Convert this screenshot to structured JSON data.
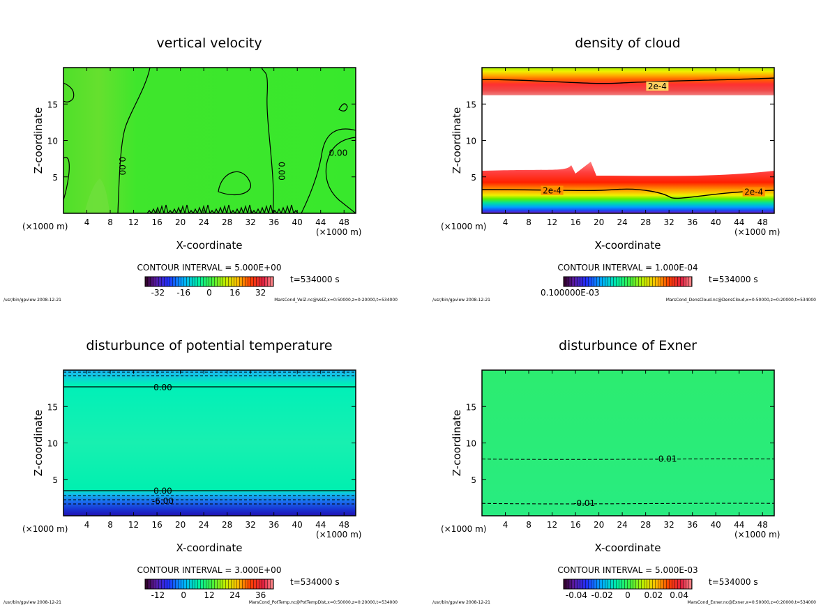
{
  "footer_left": "/usr/bin/gpview  2008-12-21",
  "chart_data": [
    {
      "type": "heatmap",
      "title": "vertical velocity",
      "xlabel": "X-coordinate",
      "ylabel": "Z-coordinate",
      "x_unit": "(×1000 m)",
      "x_ticks": [
        4,
        8,
        12,
        16,
        20,
        24,
        28,
        32,
        36,
        40,
        44,
        48
      ],
      "y_ticks": [
        5,
        10,
        15
      ],
      "xlim": [
        0,
        50
      ],
      "ylim": [
        0,
        20
      ],
      "contour_interval": "CONTOUR INTERVAL = 5.000E+00",
      "time_label": "t=534000 s",
      "colorbar_labels": [
        "-32",
        "-16",
        "0",
        "16",
        "32"
      ],
      "colorbar_values": [
        -32,
        -16,
        0,
        16,
        32
      ],
      "colorbar_range": [
        -40,
        40
      ],
      "contour_labels": [
        {
          "text": "0.00",
          "x": 10.0,
          "z": 6.5
        },
        {
          "text": "0.00",
          "x": 37.3,
          "z": 5.8
        },
        {
          "text": "0.00",
          "x": 47.0,
          "z": 8.3
        }
      ],
      "footer_right": "MarsCond_VelZ.nc@VelZ,x=0:50000,z=0:20000,t=534000",
      "palette": "green"
    },
    {
      "type": "heatmap",
      "title": "density of cloud",
      "xlabel": "X-coordinate",
      "ylabel": "Z-coordinate",
      "x_unit": "(×1000 m)",
      "x_ticks": [
        4,
        8,
        12,
        16,
        20,
        24,
        28,
        32,
        36,
        40,
        44,
        48
      ],
      "y_ticks": [
        5,
        10,
        15
      ],
      "xlim": [
        0,
        50
      ],
      "ylim": [
        0,
        20
      ],
      "contour_interval": "CONTOUR INTERVAL = 1.000E-04",
      "time_label": "t=534000 s",
      "colorbar_labels": [
        "0.100000E-03"
      ],
      "colorbar_values": [
        0
      ],
      "colorbar_range": [
        0,
        1
      ],
      "contour_labels": [
        {
          "text": "2e-4",
          "x": 30.0,
          "z": 17.4
        },
        {
          "text": "2e-4",
          "x": 12.0,
          "z": 3.1
        },
        {
          "text": "2e-4",
          "x": 46.5,
          "z": 2.9
        }
      ],
      "footer_right": "MarsCond_DensCloud.nc@DensCloud,x=0:50000,z=0:20000,t=534000",
      "palette": "cloud"
    },
    {
      "type": "heatmap",
      "title": "disturbunce of potential temperature",
      "xlabel": "X-coordinate",
      "ylabel": "Z-coordinate",
      "x_unit": "(×1000 m)",
      "x_ticks": [
        4,
        8,
        12,
        16,
        20,
        24,
        28,
        32,
        36,
        40,
        44,
        48
      ],
      "y_ticks": [
        5,
        10,
        15
      ],
      "xlim": [
        0,
        50
      ],
      "ylim": [
        0,
        20
      ],
      "contour_interval": "CONTOUR INTERVAL = 3.000E+00",
      "time_label": "t=534000 s",
      "colorbar_labels": [
        "-12",
        "0",
        "12",
        "24",
        "36"
      ],
      "colorbar_values": [
        -12,
        0,
        12,
        24,
        36
      ],
      "colorbar_range": [
        -18,
        42
      ],
      "contour_labels": [
        {
          "text": "0.00",
          "x": 17.0,
          "z": 17.6
        },
        {
          "text": "0.00",
          "x": 17.0,
          "z": 3.4
        },
        {
          "text": "-6.00",
          "x": 17.0,
          "z": 2.0
        }
      ],
      "footer_right": "MarsCond_PotTemp.nc@PotTempDist,x=0:50000,z=0:20000,t=534000",
      "palette": "temp"
    },
    {
      "type": "heatmap",
      "title": "disturbunce of Exner",
      "xlabel": "X-coordinate",
      "ylabel": "Z-coordinate",
      "x_unit": "(×1000 m)",
      "x_ticks": [
        4,
        8,
        12,
        16,
        20,
        24,
        28,
        32,
        36,
        40,
        44,
        48
      ],
      "y_ticks": [
        5,
        10,
        15
      ],
      "xlim": [
        0,
        50
      ],
      "ylim": [
        0,
        20
      ],
      "contour_interval": "CONTOUR INTERVAL = 5.000E-03",
      "time_label": "t=534000 s",
      "colorbar_labels": [
        "-0.04",
        "-0.02",
        "0",
        "0.02",
        "0.04"
      ],
      "colorbar_values": [
        -0.04,
        -0.02,
        0,
        0.02,
        0.04
      ],
      "colorbar_range": [
        -0.05,
        0.05
      ],
      "contour_labels": [
        {
          "text": "-0.01",
          "x": 31.5,
          "z": 7.8
        },
        {
          "text": "-0.01",
          "x": 17.5,
          "z": 1.7
        }
      ],
      "footer_right": "MarsCond_Exner.nc@Exner,x=0:50000,z=0:20000,t=534000",
      "palette": "exner"
    }
  ]
}
